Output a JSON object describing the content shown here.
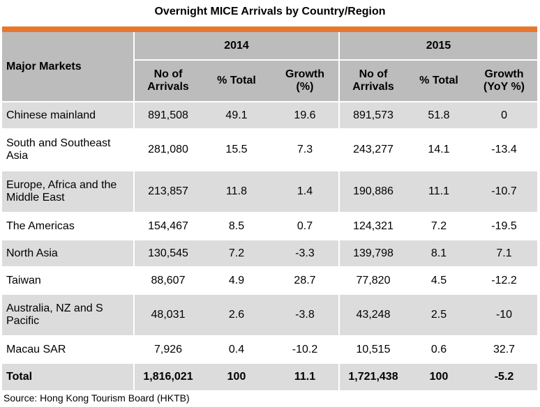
{
  "title": "Overnight MICE Arrivals by Country/Region",
  "accent_color": "#e8772e",
  "header": {
    "markets_label": "Major Markets",
    "year_2014": "2014",
    "year_2015": "2015",
    "cols_2014": [
      "No of Arrivals",
      "% Total",
      "Growth (%)"
    ],
    "cols_2015": [
      "No of Arrivals",
      "% Total",
      "Growth (YoY %)"
    ]
  },
  "rows": [
    {
      "market": "Chinese mainland",
      "v": [
        "891,508",
        "49.1",
        "19.6",
        "891,573",
        "51.8",
        "0"
      ]
    },
    {
      "market": "South and Southeast Asia",
      "v": [
        "281,080",
        "15.5",
        "7.3",
        "243,277",
        "14.1",
        "-13.4"
      ]
    },
    {
      "market": "Europe, Africa and the Middle East",
      "v": [
        "213,857",
        "11.8",
        "1.4",
        "190,886",
        "11.1",
        "-10.7"
      ]
    },
    {
      "market": "The Americas",
      "v": [
        "154,467",
        "8.5",
        "0.7",
        "124,321",
        "7.2",
        "-19.5"
      ]
    },
    {
      "market": "North Asia",
      "v": [
        "130,545",
        "7.2",
        "-3.3",
        "139,798",
        "8.1",
        "7.1"
      ]
    },
    {
      "market": "Taiwan",
      "v": [
        "88,607",
        "4.9",
        "28.7",
        "77,820",
        "4.5",
        "-12.2"
      ]
    },
    {
      "market": "Australia, NZ and S Pacific",
      "v": [
        "48,031",
        "2.6",
        "-3.8",
        "43,248",
        "2.5",
        "-10"
      ]
    },
    {
      "market": "Macau SAR",
      "v": [
        "7,926",
        "0.4",
        "-10.2",
        "10,515",
        "0.6",
        "32.7"
      ]
    }
  ],
  "total": {
    "market": "Total",
    "v": [
      "1,816,021",
      "100",
      "11.1",
      "1,721,438",
      "100",
      "-5.2"
    ]
  },
  "source": "Source: Hong Kong Tourism Board (HKTB)"
}
